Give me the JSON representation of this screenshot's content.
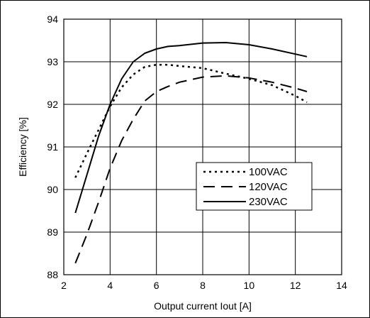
{
  "chart_data": {
    "type": "line",
    "xlabel": "Output current Iout [A]",
    "ylabel": "Efficiency [%]",
    "xlim": [
      2,
      14
    ],
    "ylim": [
      88,
      94
    ],
    "xticks": [
      2,
      4,
      6,
      8,
      10,
      12,
      14
    ],
    "yticks": [
      88,
      89,
      90,
      91,
      92,
      93,
      94
    ],
    "grid": true,
    "legend_position": "center-right",
    "series": [
      {
        "name": "100VAC",
        "style": "dotted",
        "color": "#000000",
        "x": [
          2.5,
          3.0,
          3.5,
          4.0,
          4.5,
          5.0,
          5.5,
          6.0,
          6.5,
          7.0,
          8.0,
          9.0,
          10.0,
          11.0,
          12.0,
          12.5
        ],
        "y": [
          90.28,
          90.85,
          91.4,
          91.95,
          92.4,
          92.7,
          92.88,
          92.93,
          92.93,
          92.9,
          92.85,
          92.72,
          92.6,
          92.45,
          92.2,
          92.05
        ]
      },
      {
        "name": "120VAC",
        "style": "dashed",
        "color": "#000000",
        "x": [
          2.5,
          3.0,
          3.5,
          4.0,
          4.5,
          5.0,
          5.5,
          6.0,
          6.5,
          7.0,
          8.0,
          9.0,
          10.0,
          11.0,
          12.0,
          12.5
        ],
        "y": [
          88.27,
          88.95,
          89.7,
          90.5,
          91.15,
          91.65,
          92.08,
          92.3,
          92.42,
          92.52,
          92.64,
          92.67,
          92.62,
          92.52,
          92.38,
          92.3
        ]
      },
      {
        "name": "230VAC",
        "style": "solid",
        "color": "#000000",
        "x": [
          2.5,
          3.0,
          3.5,
          4.0,
          4.5,
          5.0,
          5.5,
          6.0,
          6.5,
          7.0,
          8.0,
          9.0,
          10.0,
          11.0,
          12.0,
          12.5
        ],
        "y": [
          89.45,
          90.35,
          91.25,
          92.0,
          92.6,
          93.0,
          93.2,
          93.3,
          93.36,
          93.38,
          93.44,
          93.45,
          93.4,
          93.3,
          93.18,
          93.12
        ]
      }
    ]
  }
}
